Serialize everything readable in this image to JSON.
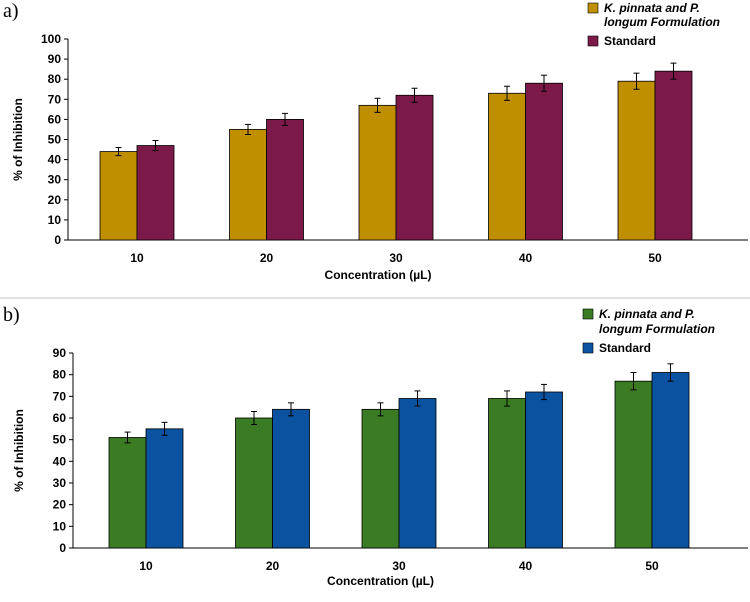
{
  "chart_data": [
    {
      "type": "bar",
      "panel_label": "a)",
      "title": "",
      "categories": [
        "10",
        "20",
        "30",
        "40",
        "50"
      ],
      "series": [
        {
          "name": "K. pinnata and P. longum Formulation",
          "name_lines": [
            "K. pinnata and P.",
            "longum Formulation"
          ],
          "color": "#c08f00",
          "values": [
            44,
            55,
            67,
            73,
            79
          ],
          "errors": [
            2,
            2.5,
            3.5,
            3.5,
            4
          ]
        },
        {
          "name": "Standard",
          "name_lines": [
            "Standard"
          ],
          "color": "#7b1a48",
          "values": [
            47,
            60,
            72,
            78,
            84
          ],
          "errors": [
            2.5,
            3,
            3.5,
            4,
            4
          ]
        }
      ],
      "xlabel": "Concentration (µL)",
      "ylabel": "% of Inhibition",
      "ylim": [
        0,
        100
      ],
      "yticks": [
        "0",
        "10",
        "20",
        "30",
        "40",
        "50",
        "60",
        "70",
        "80",
        "90",
        "100"
      ],
      "legend_position": "top-right",
      "grid": false
    },
    {
      "type": "bar",
      "panel_label": "b)",
      "title": "",
      "categories": [
        "10",
        "20",
        "30",
        "40",
        "50"
      ],
      "series": [
        {
          "name": "K. pinnata and P. longum Formulation",
          "name_lines": [
            "K. pinnata and P.",
            "longum Formulation"
          ],
          "color": "#3a7b23",
          "values": [
            51,
            60,
            64,
            69,
            77
          ],
          "errors": [
            2.5,
            3,
            3,
            3.5,
            4
          ]
        },
        {
          "name": "Standard",
          "name_lines": [
            "Standard"
          ],
          "color": "#0b52a0",
          "values": [
            55,
            64,
            69,
            72,
            81
          ],
          "errors": [
            3,
            3,
            3.5,
            3.5,
            4
          ]
        }
      ],
      "xlabel": "Concentration (µL)",
      "ylabel": "% of Inhibition",
      "ylim": [
        0,
        90
      ],
      "yticks": [
        "0",
        "10",
        "20",
        "30",
        "40",
        "50",
        "60",
        "70",
        "80",
        "90"
      ],
      "legend_position": "top-right",
      "grid": false
    }
  ]
}
